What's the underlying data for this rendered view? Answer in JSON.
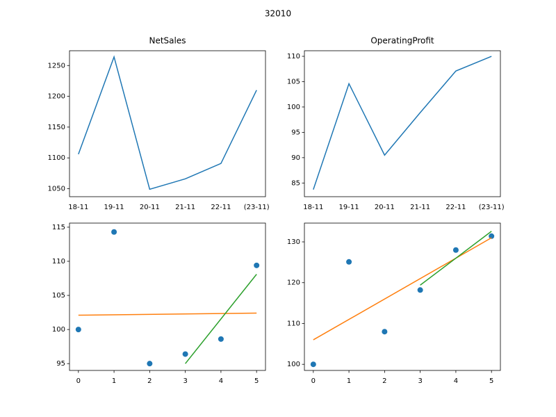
{
  "title": "32010",
  "chart_data": [
    {
      "type": "line",
      "title": "NetSales",
      "categories": [
        "18-11",
        "19-11",
        "20-11",
        "21-11",
        "22-11",
        "(23-11)"
      ],
      "series": [
        {
          "color": "#1f77b4",
          "values": [
            1106,
            1264,
            1049,
            1066,
            1091,
            1210
          ]
        }
      ],
      "ylim": [
        1037,
        1274
      ],
      "yticks": [
        1050,
        1100,
        1150,
        1200,
        1250
      ]
    },
    {
      "type": "line",
      "title": "OperatingProfit",
      "categories": [
        "18-11",
        "19-11",
        "20-11",
        "21-11",
        "22-11",
        "(23-11)"
      ],
      "series": [
        {
          "color": "#1f77b4",
          "values": [
            83.7,
            104.6,
            90.5,
            98.9,
            107.1,
            110
          ]
        }
      ],
      "ylim": [
        82.3,
        111.1
      ],
      "yticks": [
        85,
        90,
        95,
        100,
        105,
        110
      ]
    },
    {
      "type": "scatter",
      "series": [
        {
          "style": "marker",
          "color": "#1f77b4",
          "x": [
            0,
            1,
            2,
            3,
            4,
            5
          ],
          "values": [
            100,
            114.3,
            95,
            96.4,
            98.6,
            109.4
          ]
        },
        {
          "style": "line",
          "color": "#ff7f0e",
          "x": [
            0,
            5
          ],
          "values": [
            102.1,
            102.4
          ]
        },
        {
          "style": "line",
          "color": "#2ca02c",
          "x": [
            3,
            5
          ],
          "values": [
            95,
            108.1
          ]
        }
      ],
      "xlim": [
        -0.25,
        5.25
      ],
      "xticks": [
        0,
        1,
        2,
        3,
        4,
        5
      ],
      "ylim": [
        94,
        115.6
      ],
      "yticks": [
        95,
        100,
        105,
        110,
        115
      ]
    },
    {
      "type": "scatter",
      "series": [
        {
          "style": "marker",
          "color": "#1f77b4",
          "x": [
            0,
            1,
            2,
            3,
            4,
            5
          ],
          "values": [
            100,
            125.1,
            108,
            118.2,
            128,
            131.4
          ]
        },
        {
          "style": "line",
          "color": "#ff7f0e",
          "x": [
            0,
            5
          ],
          "values": [
            106,
            131
          ]
        },
        {
          "style": "line",
          "color": "#2ca02c",
          "x": [
            3,
            5
          ],
          "values": [
            119.4,
            132.6
          ]
        }
      ],
      "xlim": [
        -0.25,
        5.25
      ],
      "xticks": [
        0,
        1,
        2,
        3,
        4,
        5
      ],
      "ylim": [
        98.5,
        134.6
      ],
      "yticks": [
        100,
        110,
        120,
        130
      ]
    }
  ]
}
